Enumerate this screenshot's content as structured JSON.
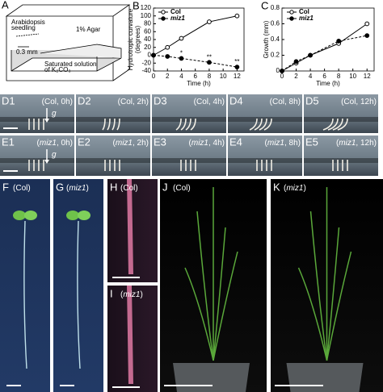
{
  "panel_a": {
    "label": "A",
    "agar": "1% Agar",
    "seedling": [
      "Arabidopsis",
      "seedling"
    ],
    "gap": "0.3 mm",
    "solution": [
      "Saturated solution",
      "of K₂CO₃"
    ]
  },
  "chart_data": [
    {
      "type": "line",
      "panel": "B",
      "xlabel": "Time (h)",
      "ylabel": [
        "Hydrotropic curvature",
        "(degrees)"
      ],
      "x": [
        0,
        2,
        4,
        8,
        12
      ],
      "xlim": [
        0,
        13
      ],
      "xticks": [
        0,
        2,
        4,
        6,
        8,
        10,
        12
      ],
      "ylim": [
        -40,
        120
      ],
      "yticks": [
        -40,
        -20,
        0,
        20,
        40,
        60,
        80,
        100,
        120
      ],
      "legend": "top-left",
      "series": [
        {
          "name": "Col",
          "color": "#000",
          "marker": "open",
          "italic": false,
          "values": [
            0,
            20,
            43,
            85,
            100
          ]
        },
        {
          "name": "miz1",
          "color": "#000",
          "marker": "filled",
          "italic": true,
          "values": [
            0,
            -3,
            -8,
            -18,
            -30
          ]
        }
      ],
      "annotations": [
        "*",
        "**",
        "**"
      ]
    },
    {
      "type": "line",
      "panel": "C",
      "xlabel": "Time (h)",
      "ylabel": [
        "Growth (mm)"
      ],
      "x": [
        0,
        2,
        4,
        8,
        12
      ],
      "xlim": [
        0,
        13
      ],
      "xticks": [
        0,
        2,
        4,
        6,
        8,
        10,
        12
      ],
      "ylim": [
        0,
        0.8
      ],
      "yticks": [
        0,
        0.2,
        0.4,
        0.6,
        0.8
      ],
      "legend": "top-left",
      "series": [
        {
          "name": "Col",
          "color": "#000",
          "marker": "open",
          "italic": false,
          "values": [
            0,
            0.1,
            0.2,
            0.35,
            0.6
          ]
        },
        {
          "name": "miz1",
          "color": "#000",
          "marker": "filled",
          "italic": true,
          "values": [
            0,
            0.12,
            0.2,
            0.38,
            0.45
          ]
        }
      ]
    }
  ],
  "rows": [
    {
      "italic": false,
      "gravity": "g",
      "panels": [
        {
          "label": "D1",
          "caption": [
            "(",
            "Col",
            ", 0h)"
          ]
        },
        {
          "label": "D2",
          "caption": [
            "(",
            "Col",
            ", 2h)"
          ]
        },
        {
          "label": "D3",
          "caption": [
            "(",
            "Col",
            ", 4h)"
          ]
        },
        {
          "label": "D4",
          "caption": [
            "(",
            "Col",
            ", 8h)"
          ]
        },
        {
          "label": "D5",
          "caption": [
            "(",
            "Col",
            ", 12h)"
          ]
        }
      ]
    },
    {
      "italic": true,
      "gravity": "g",
      "panels": [
        {
          "label": "E1",
          "caption": [
            "(",
            "miz1",
            ", 0h)"
          ]
        },
        {
          "label": "E2",
          "caption": [
            "(",
            "miz1",
            ", 2h)"
          ]
        },
        {
          "label": "E3",
          "caption": [
            "(",
            "miz1",
            ", 4h)"
          ]
        },
        {
          "label": "E4",
          "caption": [
            "(",
            "miz1",
            ", 8h)"
          ]
        },
        {
          "label": "E5",
          "caption": [
            "(",
            "miz1",
            ", 12h)"
          ]
        }
      ]
    }
  ],
  "bottom": [
    {
      "label": "F",
      "caption": [
        "(",
        "Col",
        ")"
      ],
      "italic": false
    },
    {
      "label": "G",
      "caption": [
        "(",
        "miz1",
        ")"
      ],
      "italic": true
    },
    {
      "label": "H",
      "caption": [
        "(",
        "Col",
        ")"
      ],
      "italic": false
    },
    {
      "label": "I",
      "caption": [
        "(",
        "miz1",
        ")"
      ],
      "italic": true
    },
    {
      "label": "J",
      "caption": [
        "(",
        "Col",
        ")"
      ],
      "italic": false
    },
    {
      "label": "K",
      "caption": [
        "(",
        "miz1",
        ")"
      ],
      "italic": true
    }
  ]
}
